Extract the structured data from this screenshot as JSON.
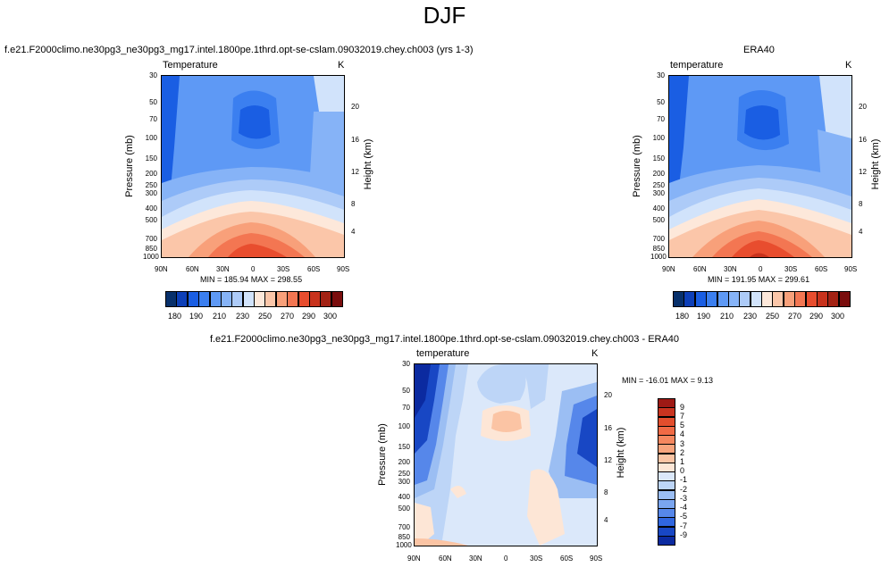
{
  "figure": {
    "title": "DJF",
    "panels": [
      {
        "id": "model",
        "title": "f.e21.F2000climo.ne30pg3_ne30pg3_mg17.intel.1800pe.1thrd.opt-se-cslam.09032019.chey.ch003 (yrs 1-3)",
        "variable": "Temperature",
        "units": "K",
        "stats": "MIN = 185.94  MAX = 298.55"
      },
      {
        "id": "obs",
        "title": "ERA40",
        "variable": "temperature",
        "units": "K",
        "stats": "MIN = 191.95  MAX = 299.61"
      },
      {
        "id": "diff",
        "title": "f.e21.F2000climo.ne30pg3_ne30pg3_mg17.intel.1800pe.1thrd.opt-se-cslam.09032019.chey.ch003 - ERA40",
        "variable": "temperature",
        "units": "K",
        "stats": "MIN = -16.01  MAX =  9.13"
      }
    ],
    "axes": {
      "ylabel": "Pressure (mb)",
      "ylabel_right": "Height (km)",
      "pressure_ticks": [
        "30",
        "50",
        "70",
        "100",
        "150",
        "200",
        "250",
        "300",
        "400",
        "500",
        "700",
        "850",
        "1000"
      ],
      "height_ticks": [
        "20",
        "16",
        "12",
        "8",
        "4"
      ],
      "lat_ticks": [
        "90N",
        "60N",
        "30N",
        "0",
        "30S",
        "60S",
        "90S"
      ]
    },
    "colorbar_main": {
      "labels": [
        "180",
        "190",
        "210",
        "230",
        "250",
        "270",
        "290",
        "300"
      ],
      "colors": [
        "#08306b",
        "#0d3fb8",
        "#1a5ee3",
        "#3b7ff0",
        "#5e99f5",
        "#86b3f7",
        "#adcbf8",
        "#d1e3fb",
        "#fde8da",
        "#fbc6a9",
        "#f8a07a",
        "#f37652",
        "#e84d2e",
        "#c8321c",
        "#a32214",
        "#7a0d0d"
      ]
    },
    "colorbar_diff": {
      "labels": [
        "9",
        "7",
        "5",
        "4",
        "3",
        "2",
        "1",
        "0",
        "-1",
        "-2",
        "-3",
        "-4",
        "-5",
        "-7",
        "-9"
      ],
      "colors": [
        "#9e1a15",
        "#c93420",
        "#e34e2d",
        "#f06a45",
        "#f5875f",
        "#f8a47d",
        "#fbc4a4",
        "#fde6d6",
        "#dbe8fa",
        "#bdd5f7",
        "#9bbef3",
        "#7aa5ef",
        "#5687ea",
        "#3066e0",
        "#1847c4",
        "#0b2aa0"
      ]
    },
    "chart_data": [
      {
        "type": "heatmap",
        "title": "f.e21.F2000climo.ne30pg3_ne30pg3_mg17.intel.1800pe.1thrd.opt-se-cslam.09032019.chey.ch003 (yrs 1-3)",
        "variable": "Temperature",
        "units": "K",
        "x": [
          "90N",
          "60N",
          "30N",
          "0",
          "30S",
          "60S",
          "90S"
        ],
        "y_pressure_mb": [
          30,
          50,
          70,
          100,
          150,
          200,
          250,
          300,
          400,
          500,
          700,
          850,
          1000
        ],
        "min": 185.94,
        "max": 298.55
      },
      {
        "type": "heatmap",
        "title": "ERA40",
        "variable": "temperature",
        "units": "K",
        "x": [
          "90N",
          "60N",
          "30N",
          "0",
          "30S",
          "60S",
          "90S"
        ],
        "y_pressure_mb": [
          30,
          50,
          70,
          100,
          150,
          200,
          250,
          300,
          400,
          500,
          700,
          850,
          1000
        ],
        "min": 191.95,
        "max": 299.61
      },
      {
        "type": "heatmap",
        "title": "f.e21.F2000climo.ne30pg3_ne30pg3_mg17.intel.1800pe.1thrd.opt-se-cslam.09032019.chey.ch003 - ERA40",
        "variable": "temperature",
        "units": "K",
        "x": [
          "90N",
          "60N",
          "30N",
          "0",
          "30S",
          "60S",
          "90S"
        ],
        "y_pressure_mb": [
          30,
          50,
          70,
          100,
          150,
          200,
          250,
          300,
          400,
          500,
          700,
          850,
          1000
        ],
        "min": -16.01,
        "max": 9.13
      }
    ]
  }
}
